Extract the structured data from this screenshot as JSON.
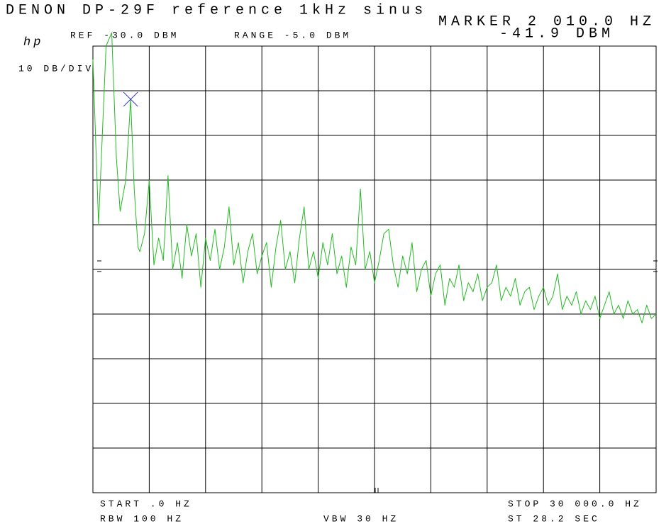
{
  "chart_data": {
    "type": "line",
    "title": "DENON DP-29F reference 1kHz sinus",
    "brand": "hp",
    "scale_label": "10 DB/DIV",
    "ref_label": "REF -30.0 DBM",
    "range_label": "RANGE -5.0 DBM",
    "start_label": "START .0 HZ",
    "stop_label": "STOP 30 000.0 HZ",
    "rbw_label": "RBW 100 HZ",
    "vbw_label": "VBW 30 HZ",
    "sweep_label": "ST 28.2 SEC",
    "marker": {
      "x": 2010,
      "y": -41.9,
      "x_label": "MARKER 2 010.0 HZ",
      "y_label": "-41.9 DBM",
      "color": "#3a3ad0"
    },
    "xlim": [
      0,
      30000
    ],
    "ylim": [
      -130,
      -30
    ],
    "series": [
      {
        "color": "#22bb22",
        "x": [
          0,
          300,
          500,
          700,
          1000,
          1250,
          1450,
          1750,
          2010,
          2200,
          2400,
          2500,
          2750,
          3000,
          3250,
          3500,
          3750,
          4000,
          4250,
          4500,
          4750,
          5000,
          5250,
          5500,
          5750,
          6000,
          6250,
          6500,
          6750,
          7000,
          7250,
          7500,
          7750,
          8000,
          8250,
          8500,
          8750,
          9000,
          9250,
          9500,
          9750,
          10000,
          10250,
          10500,
          10750,
          11000,
          11250,
          11500,
          11750,
          12000,
          12250,
          12500,
          12750,
          13000,
          13250,
          13500,
          13750,
          14000,
          14250,
          14500,
          14750,
          15000,
          15250,
          15500,
          15750,
          16000,
          16250,
          16500,
          16750,
          17000,
          17250,
          17500,
          17750,
          18000,
          18250,
          18500,
          18750,
          19000,
          19250,
          19500,
          19750,
          20000,
          20250,
          20500,
          20750,
          21000,
          21250,
          21500,
          21750,
          22000,
          22250,
          22500,
          22750,
          23000,
          23250,
          23500,
          23750,
          24000,
          24250,
          24500,
          24750,
          25000,
          25250,
          25500,
          25750,
          26000,
          26250,
          26500,
          26750,
          27000,
          27250,
          27500,
          27750,
          28000,
          28250,
          28500,
          28750,
          29000,
          29250,
          29500,
          29750,
          30000
        ],
        "values": [
          -33,
          -70,
          -50,
          -30,
          -27,
          -55,
          -67,
          -60,
          -42,
          -62,
          -75,
          -76,
          -72,
          -60,
          -79,
          -73,
          -78,
          -59,
          -80,
          -74,
          -82,
          -70,
          -77,
          -72,
          -84,
          -73,
          -78,
          -71,
          -80,
          -75,
          -66,
          -79,
          -74,
          -83,
          -76,
          -72,
          -81,
          -77,
          -74,
          -84,
          -75,
          -69,
          -80,
          -76,
          -83,
          -73,
          -66,
          -80,
          -76,
          -82,
          -74,
          -79,
          -72,
          -81,
          -77,
          -84,
          -75,
          -79,
          -62,
          -80,
          -76,
          -83,
          -78,
          -72,
          -71,
          -79,
          -84,
          -77,
          -81,
          -74,
          -85,
          -80,
          -78,
          -86,
          -81,
          -79,
          -88,
          -82,
          -84,
          -79,
          -87,
          -83,
          -85,
          -81,
          -87,
          -84,
          -83,
          -79,
          -87,
          -84,
          -86,
          -82,
          -88,
          -85,
          -84,
          -89,
          -86,
          -84,
          -88,
          -86,
          -81,
          -89,
          -86,
          -88,
          -85,
          -90,
          -87,
          -89,
          -86,
          -91,
          -88,
          -85,
          -90,
          -88,
          -91,
          -87,
          -90,
          -89,
          -92,
          -88,
          -91,
          -90
        ]
      }
    ]
  }
}
